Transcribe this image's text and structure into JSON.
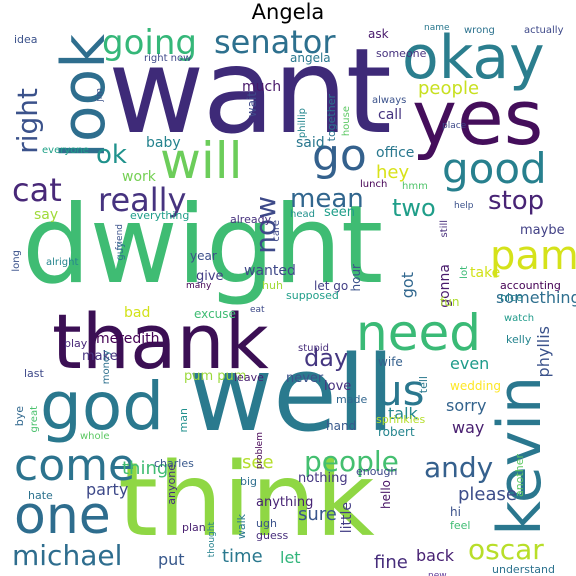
{
  "title": "Angela",
  "words": [
    {
      "text": "want",
      "color": "#3e2a78"
    },
    {
      "text": "dwight",
      "color": "#3fbc73"
    },
    {
      "text": "well",
      "color": "#2a7a8e"
    },
    {
      "text": "think",
      "color": "#8fd744"
    },
    {
      "text": "thank",
      "color": "#3b0f54"
    },
    {
      "text": "yes",
      "color": "#440e5b"
    },
    {
      "text": "okay",
      "color": "#2b7e8e"
    },
    {
      "text": "look",
      "color": "#2e6e8e"
    },
    {
      "text": "god",
      "color": "#2a788e"
    },
    {
      "text": "need",
      "color": "#3aba76"
    },
    {
      "text": "kevin",
      "color": "#2a778e"
    },
    {
      "text": "come",
      "color": "#2c738e"
    },
    {
      "text": "one",
      "color": "#2e6d8e"
    },
    {
      "text": "will",
      "color": "#6ccd5a"
    },
    {
      "text": "go",
      "color": "#34618d"
    },
    {
      "text": "good",
      "color": "#27808e"
    },
    {
      "text": "going",
      "color": "#35b779"
    },
    {
      "text": "senator",
      "color": "#2d708e"
    },
    {
      "text": "really",
      "color": "#46337f"
    },
    {
      "text": "cat",
      "color": "#482878"
    },
    {
      "text": "pam",
      "color": "#d5e21a"
    },
    {
      "text": "us",
      "color": "#2a778e"
    },
    {
      "text": "michael",
      "color": "#2e6d8e"
    },
    {
      "text": "oscar",
      "color": "#b8de29"
    },
    {
      "text": "andy",
      "color": "#35608d"
    },
    {
      "text": "mean",
      "color": "#31668e"
    },
    {
      "text": "stop",
      "color": "#482475"
    },
    {
      "text": "two",
      "color": "#1f9e89"
    },
    {
      "text": "now",
      "color": "#3e4a89"
    },
    {
      "text": "right",
      "color": "#3b528b"
    },
    {
      "text": "ok",
      "color": "#20928c"
    },
    {
      "text": "day",
      "color": "#453781"
    },
    {
      "text": "people",
      "color": "#c8e020"
    },
    {
      "text": "hey",
      "color": "#d8e219"
    },
    {
      "text": "see",
      "color": "#44bf70"
    },
    {
      "text": "thing",
      "color": "#b5de2b"
    },
    {
      "text": "party",
      "color": "#3fbc73"
    },
    {
      "text": "sure",
      "color": "#3e4989"
    },
    {
      "text": "put",
      "color": "#39568c"
    },
    {
      "text": "time",
      "color": "#38588c"
    },
    {
      "text": "let",
      "color": "#2a788e"
    },
    {
      "text": "fine",
      "color": "#31b57b"
    },
    {
      "text": "back",
      "color": "#472d7b"
    },
    {
      "text": "please",
      "color": "#482173"
    },
    {
      "text": "way",
      "color": "#3d4d8a"
    },
    {
      "text": "talk",
      "color": "#481f70"
    },
    {
      "text": "sorry",
      "color": "#24878e"
    },
    {
      "text": "even",
      "color": "#33638d"
    },
    {
      "text": "phyllis",
      "color": "#1e9b8a"
    },
    {
      "text": "something",
      "color": "#3b528b"
    },
    {
      "text": "got",
      "color": "#2e6f8e"
    },
    {
      "text": "take",
      "color": "#31678e"
    },
    {
      "text": "gonna",
      "color": "#d2e21b"
    },
    {
      "text": "say",
      "color": "#481a6c"
    },
    {
      "text": "work",
      "color": "#a0da39"
    },
    {
      "text": "baby",
      "color": "#75d054"
    },
    {
      "text": "office",
      "color": "#25838e"
    },
    {
      "text": "said",
      "color": "#2a788e"
    },
    {
      "text": "much",
      "color": "#2a778e"
    },
    {
      "text": "call",
      "color": "#48186a"
    },
    {
      "text": "bad",
      "color": "#463480"
    },
    {
      "text": "wanted",
      "color": "#d2e21b"
    },
    {
      "text": "give",
      "color": "#3f4889"
    },
    {
      "text": "year",
      "color": "#433e85"
    },
    {
      "text": "maybe",
      "color": "#3c4f8a"
    },
    {
      "text": "make",
      "color": "#424186"
    },
    {
      "text": "meredith",
      "color": "#46337f"
    },
    {
      "text": "pum pum",
      "color": "#440154"
    },
    {
      "text": "never",
      "color": "#9bd93c"
    },
    {
      "text": "love",
      "color": "#3b528b"
    },
    {
      "text": "made",
      "color": "#46307e"
    },
    {
      "text": "hand",
      "color": "#31668e"
    },
    {
      "text": "robert",
      "color": "#38598c"
    },
    {
      "text": "nothing",
      "color": "#25858e"
    },
    {
      "text": "little",
      "color": "#453882"
    },
    {
      "text": "hello",
      "color": "#433e85"
    },
    {
      "text": "anything",
      "color": "#471365"
    },
    {
      "text": "ugh",
      "color": "#482475"
    },
    {
      "text": "guess",
      "color": "#3b528b"
    },
    {
      "text": "walk",
      "color": "#472e7c"
    },
    {
      "text": "plan",
      "color": "#2a788e"
    },
    {
      "text": "hate",
      "color": "#481f70"
    },
    {
      "text": "big",
      "color": "#2c728e"
    },
    {
      "text": "charles",
      "color": "#2e6e8e"
    },
    {
      "text": "hi",
      "color": "#38588c"
    },
    {
      "text": "feel",
      "color": "#3b528b"
    },
    {
      "text": "enough",
      "color": "#3fbc73"
    },
    {
      "text": "new",
      "color": "#3e4989"
    },
    {
      "text": "understand",
      "color": "#5e3c99"
    },
    {
      "text": "another",
      "color": "#2c728e"
    },
    {
      "text": "sprinkles",
      "color": "#5ec962"
    },
    {
      "text": "wedding",
      "color": "#b5de2b"
    },
    {
      "text": "wife",
      "color": "#fde725"
    },
    {
      "text": "kelly",
      "color": "#35608d"
    },
    {
      "text": "watch",
      "color": "#25848e"
    },
    {
      "text": "accounting",
      "color": "#1f9a8a"
    },
    {
      "text": "nice",
      "color": "#440154"
    },
    {
      "text": "fun",
      "color": "#25848e"
    },
    {
      "text": "tell",
      "color": "#addc30"
    },
    {
      "text": "lot",
      "color": "#2a788e"
    },
    {
      "text": "let go",
      "color": "#3aba76"
    },
    {
      "text": "hour",
      "color": "#423f85"
    },
    {
      "text": "supposed",
      "color": "#3b528b"
    },
    {
      "text": "huh",
      "color": "#1f9e89"
    },
    {
      "text": "many",
      "color": "#a0da39"
    },
    {
      "text": "excuse",
      "color": "#440154"
    },
    {
      "text": "leave",
      "color": "#3fbc73"
    },
    {
      "text": "stupid",
      "color": "#481f70"
    },
    {
      "text": "eat",
      "color": "#472d7b"
    },
    {
      "text": "money",
      "color": "#3e4a89"
    },
    {
      "text": "play",
      "color": "#2d708e"
    },
    {
      "text": "last",
      "color": "#482878"
    },
    {
      "text": "bye",
      "color": "#3e4989"
    },
    {
      "text": "great",
      "color": "#31688e"
    },
    {
      "text": "whole",
      "color": "#4ac16d"
    },
    {
      "text": "anyone",
      "color": "#5cc863"
    },
    {
      "text": "thought",
      "color": "#46307e"
    },
    {
      "text": "problem",
      "color": "#26828e"
    },
    {
      "text": "man",
      "color": "#440154"
    },
    {
      "text": "friend",
      "color": "#21908d"
    },
    {
      "text": "guy",
      "color": "#3b528b"
    },
    {
      "text": "alright",
      "color": "#2c738e"
    },
    {
      "text": "long",
      "color": "#25858e"
    },
    {
      "text": "care",
      "color": "#3b528b"
    },
    {
      "text": "everything",
      "color": "#3e4989"
    },
    {
      "text": "already",
      "color": "#1f9e89"
    },
    {
      "text": "head",
      "color": "#46327e"
    },
    {
      "text": "seen",
      "color": "#21918c"
    },
    {
      "text": "still",
      "color": "#1f9e89"
    },
    {
      "text": "help",
      "color": "#472d7b"
    },
    {
      "text": "hmm",
      "color": "#3b528b"
    },
    {
      "text": "place",
      "color": "#50c46a"
    },
    {
      "text": "lunch",
      "color": "#3e4a89"
    },
    {
      "text": "always",
      "color": "#440154"
    },
    {
      "text": "house",
      "color": "#3b528b"
    },
    {
      "text": "together",
      "color": "#5cc863"
    },
    {
      "text": "phillip",
      "color": "#2c728e"
    },
    {
      "text": "wait",
      "color": "#24868e"
    },
    {
      "text": "everyone",
      "color": "#3e4989"
    },
    {
      "text": "jim",
      "color": "#1fa187"
    },
    {
      "text": "right now",
      "color": "#3b528b"
    },
    {
      "text": "angela",
      "color": "#3e4989"
    },
    {
      "text": "someone",
      "color": "#2a788e"
    },
    {
      "text": "ask",
      "color": "#46327e"
    },
    {
      "text": "name",
      "color": "#481a6c"
    },
    {
      "text": "wrong",
      "color": "#2a788e"
    },
    {
      "text": "actually",
      "color": "#2c728e"
    },
    {
      "text": "idea",
      "color": "#3e4989"
    },
    {
      "text": "night",
      "color": "#3b528b"
    }
  ]
}
